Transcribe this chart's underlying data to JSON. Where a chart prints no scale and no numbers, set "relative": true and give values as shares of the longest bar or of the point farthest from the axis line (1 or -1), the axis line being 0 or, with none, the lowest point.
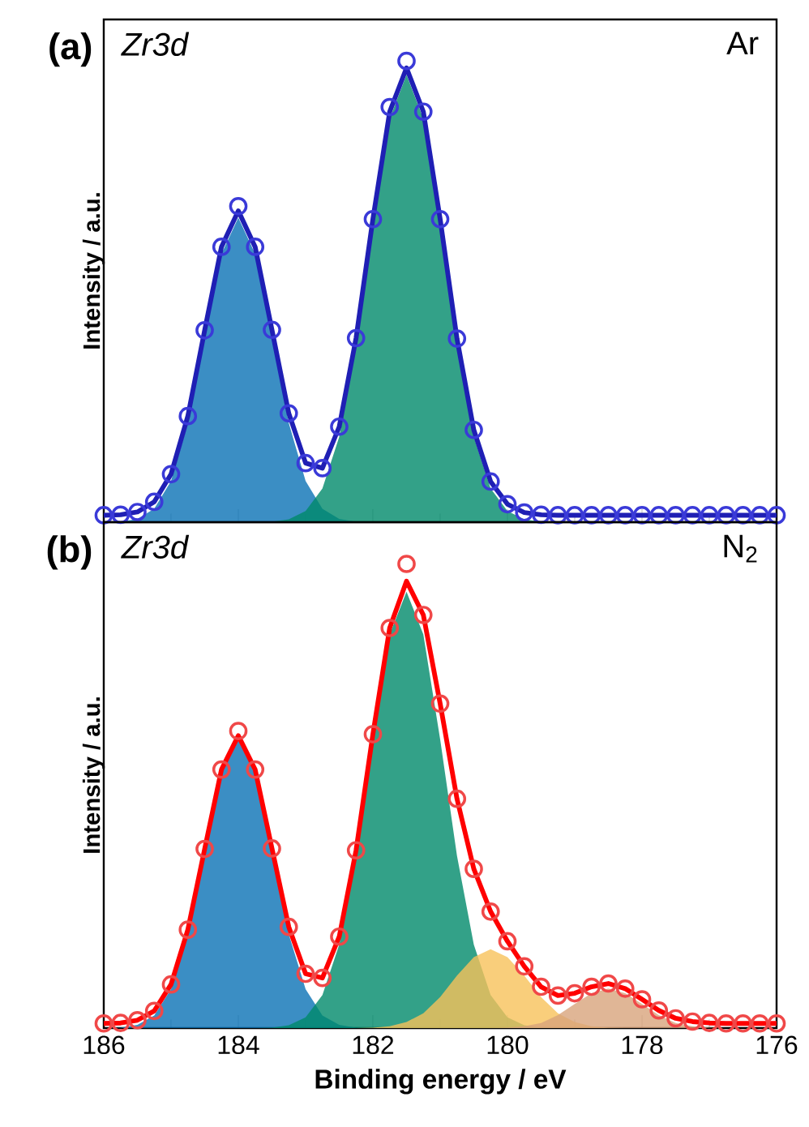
{
  "chart_data": [
    {
      "type": "area",
      "title": "(a)",
      "ylabel": "Intensity / a.u.",
      "annotations": [
        "Zr3d",
        "Ar"
      ],
      "relative": true,
      "tick_labels": false,
      "xlim": [
        186,
        176
      ],
      "xticks": [
        186,
        184,
        182,
        180,
        178,
        176
      ],
      "x": [
        186.0,
        185.75,
        185.5,
        185.25,
        185.0,
        184.75,
        184.5,
        184.25,
        184.0,
        183.75,
        183.5,
        183.25,
        183.0,
        182.75,
        182.5,
        182.25,
        182.0,
        181.75,
        181.5,
        181.25,
        181.0,
        180.75,
        180.5,
        180.25,
        180.0,
        179.75,
        179.5,
        179.25,
        179.0,
        178.75,
        178.5,
        178.25,
        178.0,
        177.75,
        177.5,
        177.25,
        177.0,
        176.75,
        176.5,
        176.25,
        176.0
      ],
      "series": [
        {
          "color": "#0a72b5",
          "values": [
            0,
            0.001,
            0.007,
            0.029,
            0.089,
            0.215,
            0.401,
            0.582,
            0.66,
            0.582,
            0.401,
            0.215,
            0.089,
            0.029,
            0.007,
            0.001,
            0,
            0,
            0,
            0,
            0,
            0,
            0,
            0,
            0,
            0,
            0,
            0,
            0,
            0,
            0,
            0,
            0,
            0,
            0,
            0,
            0,
            0,
            0,
            0,
            0
          ]
        },
        {
          "color": "#008a6a",
          "values": [
            0,
            0,
            0,
            0,
            0,
            0,
            0,
            0,
            0,
            0,
            0.001,
            0.006,
            0.024,
            0.073,
            0.185,
            0.383,
            0.642,
            0.875,
            0.97,
            0.875,
            0.642,
            0.383,
            0.185,
            0.073,
            0.024,
            0.006,
            0.001,
            0,
            0,
            0,
            0,
            0,
            0,
            0,
            0,
            0,
            0,
            0,
            0,
            0,
            0
          ]
        },
        {
          "type": "scatter",
          "marker": "circle",
          "color": "#3a3ad8",
          "values": [
            0.015,
            0.016,
            0.022,
            0.044,
            0.104,
            0.23,
            0.416,
            0.597,
            0.685,
            0.597,
            0.417,
            0.236,
            0.128,
            0.117,
            0.207,
            0.399,
            0.657,
            0.9,
            1.0,
            0.89,
            0.657,
            0.398,
            0.2,
            0.088,
            0.039,
            0.021,
            0.016,
            0.015,
            0.015,
            0.015,
            0.015,
            0.015,
            0.015,
            0.015,
            0.015,
            0.015,
            0.015,
            0.015,
            0.015,
            0.015,
            0.015
          ]
        },
        {
          "type": "line",
          "color": "#1f1fb4",
          "values": [
            0.015,
            0.016,
            0.022,
            0.044,
            0.104,
            0.23,
            0.416,
            0.597,
            0.675,
            0.597,
            0.417,
            0.236,
            0.128,
            0.117,
            0.207,
            0.399,
            0.657,
            0.89,
            0.985,
            0.89,
            0.657,
            0.398,
            0.2,
            0.088,
            0.039,
            0.021,
            0.016,
            0.015,
            0.015,
            0.015,
            0.015,
            0.015,
            0.015,
            0.015,
            0.015,
            0.015,
            0.015,
            0.015,
            0.015,
            0.015,
            0.015
          ]
        }
      ]
    },
    {
      "type": "area",
      "title": "(b)",
      "xlabel": "Binding energy / eV",
      "ylabel": "Intensity / a.u.",
      "annotations": [
        "Zr3d",
        "N$_{2}$"
      ],
      "relative": true,
      "tick_labels": "x",
      "xlim": [
        186,
        176
      ],
      "xticks": [
        186,
        184,
        182,
        180,
        178,
        176
      ],
      "x": [
        186.0,
        185.75,
        185.5,
        185.25,
        185.0,
        184.75,
        184.5,
        184.25,
        184.0,
        183.75,
        183.5,
        183.25,
        183.0,
        182.75,
        182.5,
        182.25,
        182.0,
        181.75,
        181.5,
        181.25,
        181.0,
        180.75,
        180.5,
        180.25,
        180.0,
        179.75,
        179.5,
        179.25,
        179.0,
        178.75,
        178.5,
        178.25,
        178.0,
        177.75,
        177.5,
        177.25,
        177.0,
        176.75,
        176.5,
        176.25,
        176.0
      ],
      "series": [
        {
          "color": "#0a72b5",
          "values": [
            0,
            0.001,
            0.007,
            0.027,
            0.084,
            0.202,
            0.376,
            0.547,
            0.62,
            0.547,
            0.376,
            0.202,
            0.084,
            0.027,
            0.007,
            0.001,
            0,
            0,
            0,
            0,
            0,
            0,
            0,
            0,
            0,
            0,
            0,
            0,
            0,
            0,
            0,
            0,
            0,
            0,
            0,
            0,
            0,
            0,
            0,
            0,
            0
          ]
        },
        {
          "color": "#008a6a",
          "values": [
            0,
            0,
            0,
            0,
            0,
            0,
            0,
            0,
            0,
            0,
            0.001,
            0.006,
            0.023,
            0.071,
            0.18,
            0.371,
            0.622,
            0.848,
            0.94,
            0.848,
            0.622,
            0.371,
            0.18,
            0.071,
            0.023,
            0.006,
            0.001,
            0,
            0,
            0,
            0,
            0,
            0,
            0,
            0,
            0,
            0,
            0,
            0,
            0,
            0
          ]
        },
        {
          "color": "#f7c25a",
          "values": [
            0,
            0,
            0,
            0,
            0,
            0,
            0,
            0,
            0,
            0,
            0,
            0,
            0,
            0,
            0,
            0,
            0.001,
            0.004,
            0.013,
            0.032,
            0.067,
            0.113,
            0.153,
            0.17,
            0.153,
            0.113,
            0.067,
            0.032,
            0.013,
            0.004,
            0.001,
            0,
            0,
            0,
            0,
            0,
            0,
            0,
            0,
            0,
            0
          ]
        },
        {
          "color": "#d8a47c",
          "values": [
            0,
            0,
            0,
            0,
            0,
            0,
            0,
            0,
            0,
            0,
            0,
            0,
            0,
            0,
            0,
            0,
            0,
            0,
            0,
            0,
            0,
            0,
            0,
            0,
            0.001,
            0.004,
            0.011,
            0.028,
            0.052,
            0.075,
            0.085,
            0.075,
            0.052,
            0.028,
            0.011,
            0.004,
            0.001,
            0,
            0,
            0,
            0
          ]
        },
        {
          "type": "scatter",
          "marker": "circle",
          "color": "#f04848",
          "values": [
            0.01,
            0.011,
            0.017,
            0.037,
            0.094,
            0.212,
            0.386,
            0.557,
            0.64,
            0.557,
            0.387,
            0.218,
            0.117,
            0.108,
            0.197,
            0.383,
            0.633,
            0.862,
            1.0,
            0.89,
            0.699,
            0.494,
            0.343,
            0.251,
            0.187,
            0.133,
            0.089,
            0.07,
            0.075,
            0.089,
            0.096,
            0.085,
            0.062,
            0.038,
            0.021,
            0.014,
            0.011,
            0.01,
            0.01,
            0.01,
            0.01
          ]
        },
        {
          "type": "line",
          "color": "#ff0000",
          "values": [
            0.01,
            0.011,
            0.017,
            0.037,
            0.094,
            0.212,
            0.386,
            0.557,
            0.63,
            0.557,
            0.387,
            0.218,
            0.117,
            0.108,
            0.197,
            0.383,
            0.633,
            0.862,
            0.963,
            0.89,
            0.699,
            0.494,
            0.343,
            0.251,
            0.187,
            0.133,
            0.089,
            0.07,
            0.075,
            0.089,
            0.096,
            0.085,
            0.062,
            0.038,
            0.021,
            0.014,
            0.011,
            0.01,
            0.01,
            0.01,
            0.01
          ]
        }
      ]
    }
  ]
}
